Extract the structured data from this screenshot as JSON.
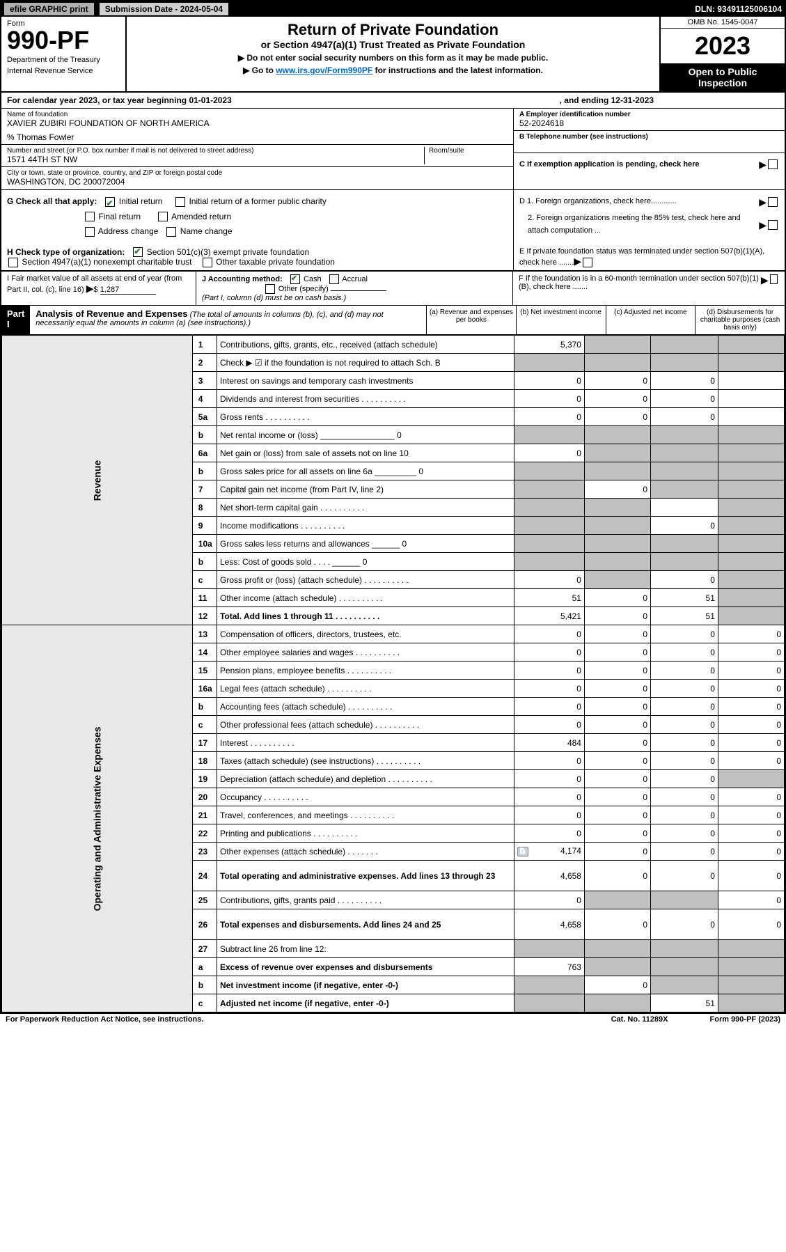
{
  "top": {
    "efile": "efile GRAPHIC print",
    "submission": "Submission Date - 2024-05-04",
    "dln": "DLN: 93491125006104"
  },
  "header": {
    "form_label": "Form",
    "form_num": "990-PF",
    "dept1": "Department of the Treasury",
    "dept2": "Internal Revenue Service",
    "title": "Return of Private Foundation",
    "subtitle": "or Section 4947(a)(1) Trust Treated as Private Foundation",
    "note1": "▶ Do not enter social security numbers on this form as it may be made public.",
    "note2_pre": "▶ Go to ",
    "note2_link": "www.irs.gov/Form990PF",
    "note2_post": " for instructions and the latest information.",
    "omb": "OMB No. 1545-0047",
    "year": "2023",
    "open": "Open to Public Inspection"
  },
  "calendar": {
    "text": "For calendar year 2023, or tax year beginning 01-01-2023",
    "ending": ", and ending 12-31-2023"
  },
  "info": {
    "name_label": "Name of foundation",
    "name": "XAVIER ZUBIRI FOUNDATION OF NORTH AMERICA",
    "care_of": "% Thomas Fowler",
    "street_label": "Number and street (or P.O. box number if mail is not delivered to street address)",
    "street": "1571 44TH ST NW",
    "room_label": "Room/suite",
    "city_label": "City or town, state or province, country, and ZIP or foreign postal code",
    "city": "WASHINGTON, DC  200072004",
    "ein_label": "A Employer identification number",
    "ein": "52-2024618",
    "phone_label": "B Telephone number (see instructions)",
    "exemption_label": "C If exemption application is pending, check here"
  },
  "checks": {
    "g_label": "G Check all that apply:",
    "g_initial": "Initial return",
    "g_initial_former": "Initial return of a former public charity",
    "g_final": "Final return",
    "g_amended": "Amended return",
    "g_address": "Address change",
    "g_name": "Name change",
    "d1": "D 1. Foreign organizations, check here............",
    "d2": "2. Foreign organizations meeting the 85% test, check here and attach computation ...",
    "e": "E  If private foundation status was terminated under section 507(b)(1)(A), check here .......",
    "h_label": "H Check type of organization:",
    "h_501c3": "Section 501(c)(3) exempt private foundation",
    "h_4947": "Section 4947(a)(1) nonexempt charitable trust",
    "h_other": "Other taxable private foundation",
    "i_label": "I Fair market value of all assets at end of year (from Part II, col. (c), line 16)",
    "i_val": "1,287",
    "j_label": "J Accounting method:",
    "j_cash": "Cash",
    "j_accrual": "Accrual",
    "j_other": "Other (specify)",
    "j_note": "(Part I, column (d) must be on cash basis.)",
    "f": "F  If the foundation is in a 60-month termination under section 507(b)(1)(B), check here ......."
  },
  "part1": {
    "label": "Part I",
    "title": "Analysis of Revenue and Expenses",
    "subtitle": "(The total of amounts in columns (b), (c), and (d) may not necessarily equal the amounts in column (a) (see instructions).)",
    "col_a": "(a) Revenue and expenses per books",
    "col_b": "(b) Net investment income",
    "col_c": "(c) Adjusted net income",
    "col_d": "(d) Disbursements for charitable purposes (cash basis only)",
    "revenue_label": "Revenue",
    "expenses_label": "Operating and Administrative Expenses"
  },
  "rows": [
    {
      "n": "1",
      "desc": "Contributions, gifts, grants, etc., received (attach schedule)",
      "a": "5,370",
      "b": "",
      "c": "",
      "d": "",
      "bs": true,
      "cs": true,
      "ds": true
    },
    {
      "n": "2",
      "desc": "Check ▶ ☑ if the foundation is not required to attach Sch. B",
      "a": "",
      "b": "",
      "c": "",
      "d": "",
      "as": true,
      "bs": true,
      "cs": true,
      "ds": true,
      "bold_check": true
    },
    {
      "n": "3",
      "desc": "Interest on savings and temporary cash investments",
      "a": "0",
      "b": "0",
      "c": "0",
      "d": ""
    },
    {
      "n": "4",
      "desc": "Dividends and interest from securities",
      "a": "0",
      "b": "0",
      "c": "0",
      "d": ""
    },
    {
      "n": "5a",
      "desc": "Gross rents",
      "a": "0",
      "b": "0",
      "c": "0",
      "d": ""
    },
    {
      "n": "b",
      "desc": "Net rental income or (loss) ________________ 0",
      "a": "",
      "b": "",
      "c": "",
      "d": "",
      "as": true,
      "bs": true,
      "cs": true,
      "ds": true
    },
    {
      "n": "6a",
      "desc": "Net gain or (loss) from sale of assets not on line 10",
      "a": "0",
      "b": "",
      "c": "",
      "d": "",
      "bs": true,
      "cs": true,
      "ds": true
    },
    {
      "n": "b",
      "desc": "Gross sales price for all assets on line 6a _________ 0",
      "a": "",
      "b": "",
      "c": "",
      "d": "",
      "as": true,
      "bs": true,
      "cs": true,
      "ds": true
    },
    {
      "n": "7",
      "desc": "Capital gain net income (from Part IV, line 2)",
      "a": "",
      "b": "0",
      "c": "",
      "d": "",
      "as": true,
      "cs": true,
      "ds": true
    },
    {
      "n": "8",
      "desc": "Net short-term capital gain",
      "a": "",
      "b": "",
      "c": "",
      "d": "",
      "as": true,
      "bs": true,
      "ds": true
    },
    {
      "n": "9",
      "desc": "Income modifications",
      "a": "",
      "b": "",
      "c": "0",
      "d": "",
      "as": true,
      "bs": true,
      "ds": true
    },
    {
      "n": "10a",
      "desc": "Gross sales less returns and allowances ______ 0",
      "a": "",
      "b": "",
      "c": "",
      "d": "",
      "as": true,
      "bs": true,
      "cs": true,
      "ds": true
    },
    {
      "n": "b",
      "desc": "Less: Cost of goods sold  .  .  .  . ______ 0",
      "a": "",
      "b": "",
      "c": "",
      "d": "",
      "as": true,
      "bs": true,
      "cs": true,
      "ds": true
    },
    {
      "n": "c",
      "desc": "Gross profit or (loss) (attach schedule)",
      "a": "0",
      "b": "",
      "c": "0",
      "d": "",
      "bs": true,
      "ds": true
    },
    {
      "n": "11",
      "desc": "Other income (attach schedule)",
      "a": "51",
      "b": "0",
      "c": "51",
      "d": "",
      "ds": true
    },
    {
      "n": "12",
      "desc": "Total. Add lines 1 through 11",
      "a": "5,421",
      "b": "0",
      "c": "51",
      "d": "",
      "bold": true,
      "ds": true
    }
  ],
  "exp_rows": [
    {
      "n": "13",
      "desc": "Compensation of officers, directors, trustees, etc.",
      "a": "0",
      "b": "0",
      "c": "0",
      "d": "0"
    },
    {
      "n": "14",
      "desc": "Other employee salaries and wages",
      "a": "0",
      "b": "0",
      "c": "0",
      "d": "0"
    },
    {
      "n": "15",
      "desc": "Pension plans, employee benefits",
      "a": "0",
      "b": "0",
      "c": "0",
      "d": "0"
    },
    {
      "n": "16a",
      "desc": "Legal fees (attach schedule)",
      "a": "0",
      "b": "0",
      "c": "0",
      "d": "0"
    },
    {
      "n": "b",
      "desc": "Accounting fees (attach schedule)",
      "a": "0",
      "b": "0",
      "c": "0",
      "d": "0"
    },
    {
      "n": "c",
      "desc": "Other professional fees (attach schedule)",
      "a": "0",
      "b": "0",
      "c": "0",
      "d": "0"
    },
    {
      "n": "17",
      "desc": "Interest",
      "a": "484",
      "b": "0",
      "c": "0",
      "d": "0"
    },
    {
      "n": "18",
      "desc": "Taxes (attach schedule) (see instructions)",
      "a": "0",
      "b": "0",
      "c": "0",
      "d": "0"
    },
    {
      "n": "19",
      "desc": "Depreciation (attach schedule) and depletion",
      "a": "0",
      "b": "0",
      "c": "0",
      "d": "",
      "ds": true
    },
    {
      "n": "20",
      "desc": "Occupancy",
      "a": "0",
      "b": "0",
      "c": "0",
      "d": "0"
    },
    {
      "n": "21",
      "desc": "Travel, conferences, and meetings",
      "a": "0",
      "b": "0",
      "c": "0",
      "d": "0"
    },
    {
      "n": "22",
      "desc": "Printing and publications",
      "a": "0",
      "b": "0",
      "c": "0",
      "d": "0"
    },
    {
      "n": "23",
      "desc": "Other expenses (attach schedule)",
      "a": "4,174",
      "b": "0",
      "c": "0",
      "d": "0",
      "icon": true
    },
    {
      "n": "24",
      "desc": "Total operating and administrative expenses. Add lines 13 through 23",
      "a": "4,658",
      "b": "0",
      "c": "0",
      "d": "0",
      "bold": true,
      "tall": true
    },
    {
      "n": "25",
      "desc": "Contributions, gifts, grants paid",
      "a": "0",
      "b": "",
      "c": "",
      "d": "0",
      "bs": true,
      "cs": true
    },
    {
      "n": "26",
      "desc": "Total expenses and disbursements. Add lines 24 and 25",
      "a": "4,658",
      "b": "0",
      "c": "0",
      "d": "0",
      "bold": true,
      "tall": true
    }
  ],
  "bottom_rows": [
    {
      "n": "27",
      "desc": "Subtract line 26 from line 12:",
      "a": "",
      "b": "",
      "c": "",
      "d": "",
      "as": true,
      "bs": true,
      "cs": true,
      "ds": true
    },
    {
      "n": "a",
      "desc": "Excess of revenue over expenses and disbursements",
      "a": "763",
      "b": "",
      "c": "",
      "d": "",
      "bold": true,
      "bs": true,
      "cs": true,
      "ds": true
    },
    {
      "n": "b",
      "desc": "Net investment income (if negative, enter -0-)",
      "a": "",
      "b": "0",
      "c": "",
      "d": "",
      "bold": true,
      "as": true,
      "cs": true,
      "ds": true
    },
    {
      "n": "c",
      "desc": "Adjusted net income (if negative, enter -0-)",
      "a": "",
      "b": "",
      "c": "51",
      "d": "",
      "bold": true,
      "as": true,
      "bs": true,
      "ds": true
    }
  ],
  "footer": {
    "left": "For Paperwork Reduction Act Notice, see instructions.",
    "mid": "Cat. No. 11289X",
    "right": "Form 990-PF (2023)"
  }
}
